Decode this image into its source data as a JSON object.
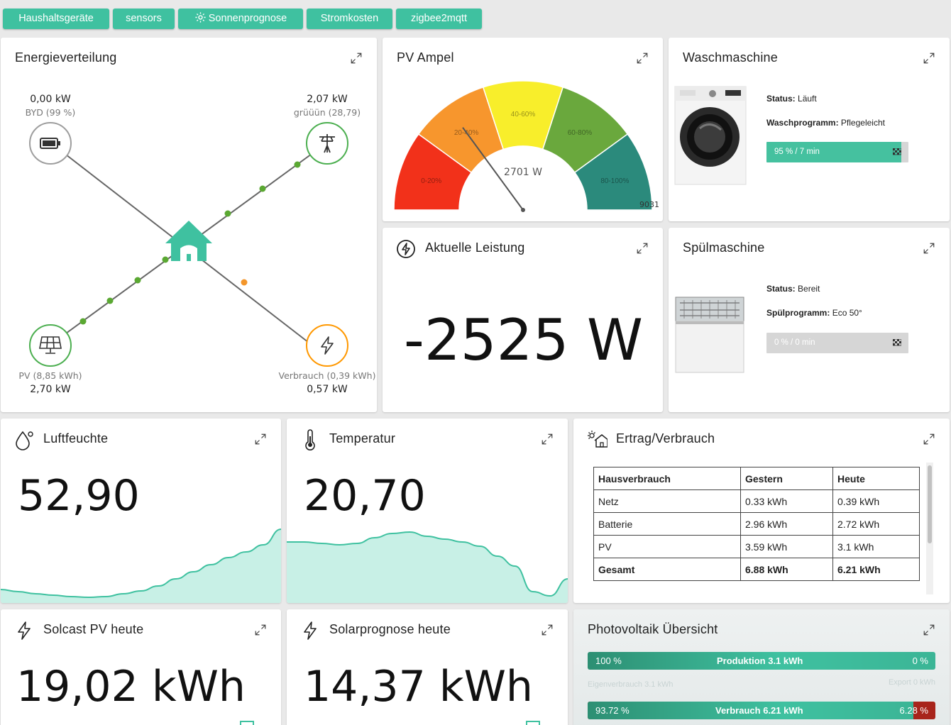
{
  "nav": {
    "chips": [
      {
        "label": "Haushaltsgeräte",
        "icon": ""
      },
      {
        "label": "sensors",
        "icon": ""
      },
      {
        "label": "Sonnenprognose",
        "icon": "gear-icon"
      },
      {
        "label": "Stromkosten",
        "icon": ""
      },
      {
        "label": "zigbee2mqtt",
        "icon": ""
      }
    ]
  },
  "energy": {
    "title": "Energieverteilung",
    "battery": {
      "value": "0,00 kW",
      "sub": "BYD (99 %)",
      "icon": "battery-icon"
    },
    "grid": {
      "value": "2,07 kW",
      "sub": "grüüün (28,79)",
      "icon": "power-pole-icon"
    },
    "pv": {
      "value": "2,70 kW",
      "sub": "PV (8,85 kWh)",
      "icon": "solar-panel-icon"
    },
    "consumption": {
      "value": "0,57 kW",
      "sub": "Verbrauch (0,39 kWh)",
      "icon": "lightning-icon"
    },
    "colors": {
      "accent": "#3fc1a0",
      "grid": "#4caf50",
      "consumption": "#ff9800",
      "battery": "#9e9e9e"
    }
  },
  "pv_ampel": {
    "title": "PV Ampel",
    "value_label": "2701 W",
    "value": 2701,
    "max_label": "9031",
    "segments": [
      {
        "label": "0-20%",
        "color": "#f2311a"
      },
      {
        "label": "20-40%",
        "color": "#f7962d"
      },
      {
        "label": "40-60%",
        "color": "#f8ee2b"
      },
      {
        "label": "60-80%",
        "color": "#6aa83d"
      },
      {
        "label": "80-100%",
        "color": "#2b8a7c"
      }
    ]
  },
  "aktuelle_leistung": {
    "title": "Aktuelle Leistung",
    "value": "-2525 W",
    "icon": "lightning-circle-icon"
  },
  "waschmaschine": {
    "title": "Waschmaschine",
    "status_label": "Status:",
    "status": "Läuft",
    "program_label": "Waschprogramm:",
    "program": "Pflegeleicht",
    "progress_text": "95 % / 7 min",
    "progress": 0.95
  },
  "spuelmaschine": {
    "title": "Spülmaschine",
    "status_label": "Status:",
    "status": "Bereit",
    "program_label": "Spülprogramm:",
    "program": "Eco 50°",
    "progress_text": "0 % / 0 min",
    "progress": 0
  },
  "luftfeuchte": {
    "title": "Luftfeuchte",
    "value": "52,90",
    "icon": "droplet-icon",
    "trend": [
      0.15,
      0.12,
      0.09,
      0.07,
      0.05,
      0.04,
      0.05,
      0.09,
      0.13,
      0.2,
      0.3,
      0.4,
      0.5,
      0.6,
      0.68,
      0.78,
      1.0
    ]
  },
  "temperatur": {
    "title": "Temperatur",
    "value": "20,70",
    "icon": "thermometer-icon",
    "trend": [
      0.82,
      0.82,
      0.8,
      0.78,
      0.8,
      0.88,
      0.94,
      0.96,
      0.9,
      0.86,
      0.82,
      0.76,
      0.62,
      0.48,
      0.12,
      0.06,
      0.3
    ]
  },
  "ertrag": {
    "title": "Ertrag/Verbrauch",
    "icon": "house-sun-icon",
    "headers": [
      "Hausverbrauch",
      "Gestern",
      "Heute"
    ],
    "rows": [
      [
        "Netz",
        "0.33 kWh",
        "0.39 kWh"
      ],
      [
        "Batterie",
        "2.96 kWh",
        "2.72 kWh"
      ],
      [
        "PV",
        "3.59 kWh",
        "3.1 kWh"
      ]
    ],
    "total": [
      "Gesamt",
      "6.88 kWh",
      "6.21 kWh"
    ]
  },
  "solcast": {
    "title": "Solcast PV heute",
    "value": "19,02 kWh",
    "icon": "lightning-icon"
  },
  "solarprognose": {
    "title": "Solarprognose heute",
    "value": "14,37 kWh",
    "icon": "lightning-icon"
  },
  "pv_overview": {
    "title": "Photovoltaik Übersicht",
    "bar1": {
      "left": "100 %",
      "center": "Produktion  3.1 kWh",
      "right": "0 %"
    },
    "eigen": "Eigenverbrauch  3.1 kWh",
    "export": "Export 0 kWh",
    "bar2": {
      "left": "93.72 %",
      "center": "Verbrauch  6.21 kWh",
      "right": "6.28 %"
    },
    "bar2_share": 0.9372
  }
}
